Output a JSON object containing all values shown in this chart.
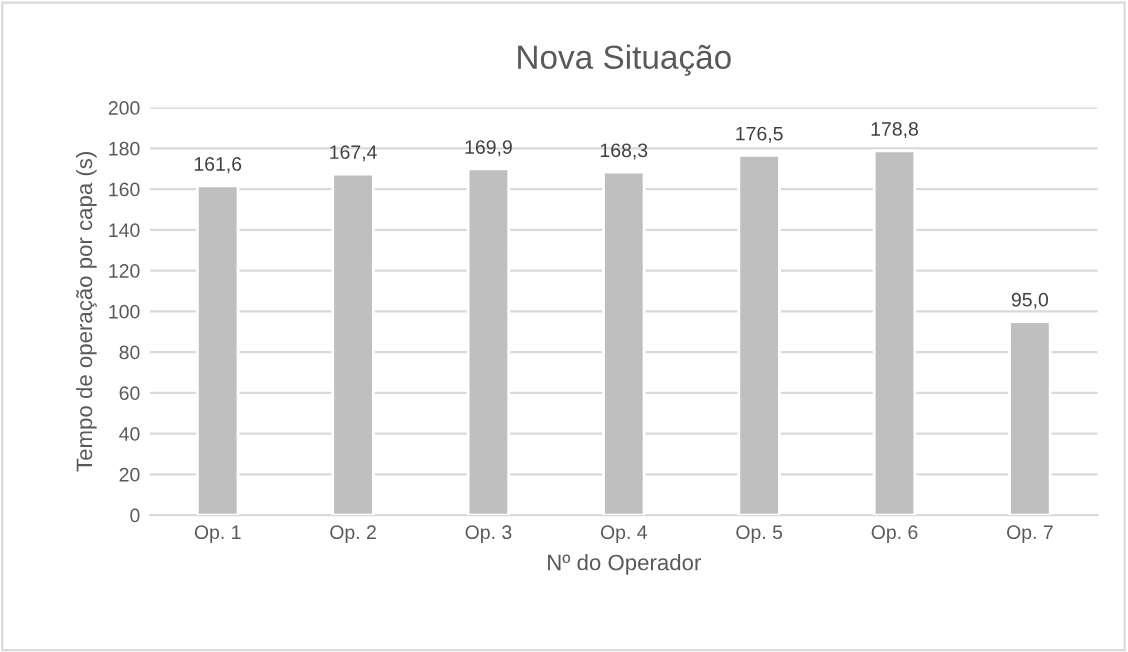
{
  "chart_data": {
    "type": "bar",
    "title": "Nova Situação",
    "xlabel": "Nº do Operador",
    "ylabel": "Tempo de operação por capa (s)",
    "categories": [
      "Op. 1",
      "Op. 2",
      "Op. 3",
      "Op. 4",
      "Op. 5",
      "Op. 6",
      "Op. 7"
    ],
    "values": [
      161.6,
      167.4,
      169.9,
      168.3,
      176.5,
      178.8,
      95.0
    ],
    "value_labels": [
      "161,6",
      "167,4",
      "169,9",
      "168,3",
      "176,5",
      "178,8",
      "95,0"
    ],
    "color": "#bfbfbf",
    "ylim": [
      0,
      200
    ],
    "yticks": [
      0,
      20,
      40,
      60,
      80,
      100,
      120,
      140,
      160,
      180,
      200
    ],
    "grid": "y",
    "legend": false
  }
}
